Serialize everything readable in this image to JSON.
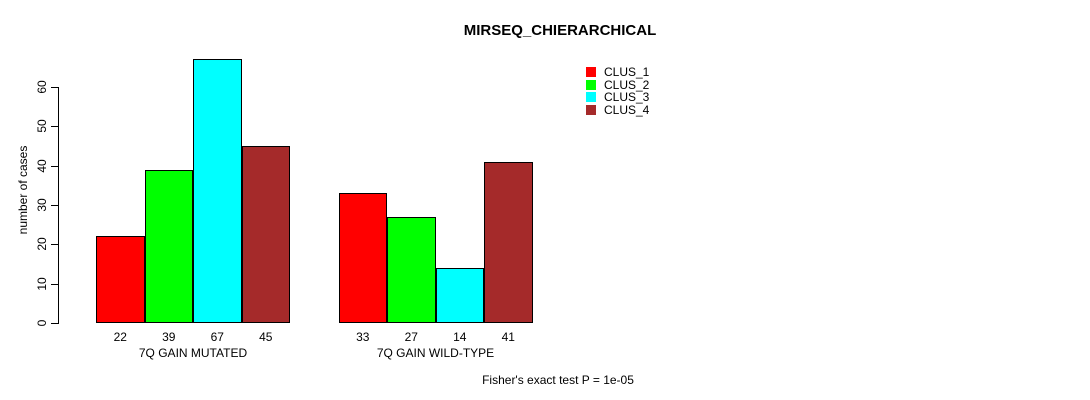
{
  "chart_data": {
    "type": "bar",
    "title": "MIRSEQ_CHIERARCHICAL",
    "ylabel": "number of cases",
    "xlabel": "",
    "ylim": [
      0,
      67
    ],
    "yticks": [
      0,
      10,
      20,
      30,
      40,
      50,
      60
    ],
    "grid": false,
    "legend_position": "top-right",
    "bar_value_labels": true,
    "groups": [
      {
        "label": "7Q GAIN MUTATED",
        "values": [
          22,
          39,
          67,
          45
        ]
      },
      {
        "label": "7Q GAIN WILD-TYPE",
        "values": [
          33,
          27,
          14,
          41
        ]
      }
    ],
    "series": [
      {
        "name": "CLUS_1",
        "color": "#FF0000"
      },
      {
        "name": "CLUS_2",
        "color": "#00FF00"
      },
      {
        "name": "CLUS_3",
        "color": "#00FFFF"
      },
      {
        "name": "CLUS_4",
        "color": "#A52A2A"
      }
    ],
    "annotation": "Fisher's exact test P = 1e-05"
  }
}
